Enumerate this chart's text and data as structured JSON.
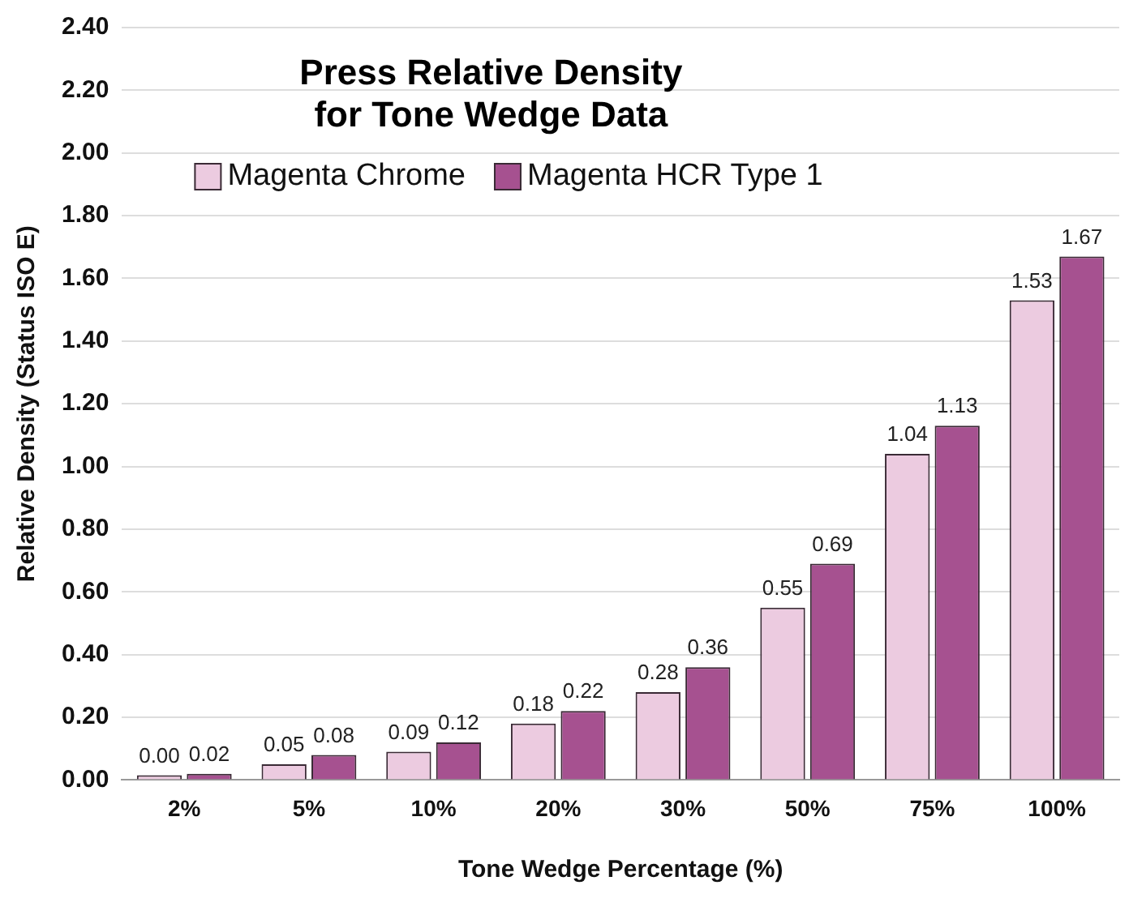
{
  "chart_data": {
    "type": "bar",
    "title": "Press Relative Density\nfor Tone Wedge Data",
    "xlabel": "Tone Wedge Percentage (%)",
    "ylabel": "Relative Density (Status ISO E)",
    "categories": [
      "2%",
      "5%",
      "10%",
      "20%",
      "30%",
      "50%",
      "75%",
      "100%"
    ],
    "series": [
      {
        "name": "Magenta Chrome",
        "color": "#eccbe0",
        "values": [
          0.0,
          0.05,
          0.09,
          0.18,
          0.28,
          0.55,
          1.04,
          1.53
        ],
        "value_labels": [
          "0.00",
          "0.05",
          "0.09",
          "0.18",
          "0.28",
          "0.55",
          "1.04",
          "1.53"
        ]
      },
      {
        "name": "Magenta HCR Type 1",
        "color": "#a65190",
        "values": [
          0.02,
          0.08,
          0.12,
          0.22,
          0.36,
          0.69,
          1.13,
          1.67
        ],
        "value_labels": [
          "0.02",
          "0.08",
          "0.12",
          "0.22",
          "0.36",
          "0.69",
          "1.13",
          "1.67"
        ]
      }
    ],
    "ylim": [
      0,
      2.4
    ],
    "yticks": [
      {
        "value": 0,
        "label": "0.00"
      },
      {
        "value": 0.2,
        "label": "0.20"
      },
      {
        "value": 0.4,
        "label": "0.40"
      },
      {
        "value": 0.6,
        "label": "0.60"
      },
      {
        "value": 0.8,
        "label": "0.80"
      },
      {
        "value": 1.0,
        "label": "1.00"
      },
      {
        "value": 1.2,
        "label": "1.20"
      },
      {
        "value": 1.4,
        "label": "1.40"
      },
      {
        "value": 1.6,
        "label": "1.60"
      },
      {
        "value": 1.8,
        "label": "1.80"
      },
      {
        "value": 2.0,
        "label": "2.00"
      },
      {
        "value": 2.2,
        "label": "2.20"
      },
      {
        "value": 2.4,
        "label": "2.40"
      }
    ],
    "grid": "y",
    "legend": "top left"
  }
}
